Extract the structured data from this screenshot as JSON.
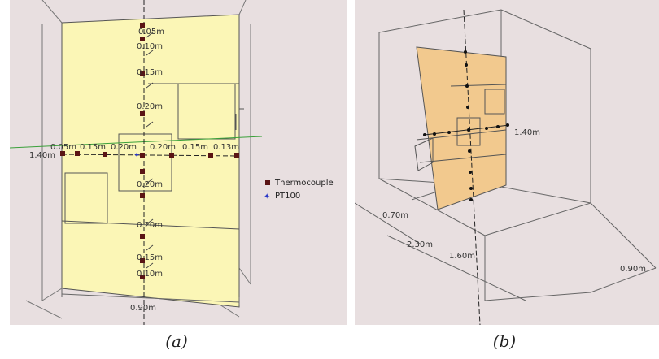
{
  "panel_a": {
    "caption": "(a)",
    "vertical_labels": [
      "0.05m",
      "0.10m",
      "0.15m",
      "0.20m",
      "0.20m",
      "0.20m",
      "0.15m",
      "0.10m"
    ],
    "horizontal_labels": [
      "0.05m",
      "0.15m",
      "0.20m",
      "0.20m",
      "0.15m",
      "0.13m"
    ],
    "height_label": "1.40m",
    "width_label": "0.90m",
    "legend": {
      "thermocouple_label": "Thermocouple",
      "pt100_label": "PT100",
      "thermocouple_color": "#5a1414",
      "pt100_color": "#2a38c8"
    },
    "panel_color": "#fbf6b6"
  },
  "panel_b": {
    "caption": "(b)",
    "height_label": "1.40m",
    "labels": [
      "0.70m",
      "2.30m",
      "1.60m",
      "0.90m"
    ],
    "panel_color": "#f2c98e"
  }
}
